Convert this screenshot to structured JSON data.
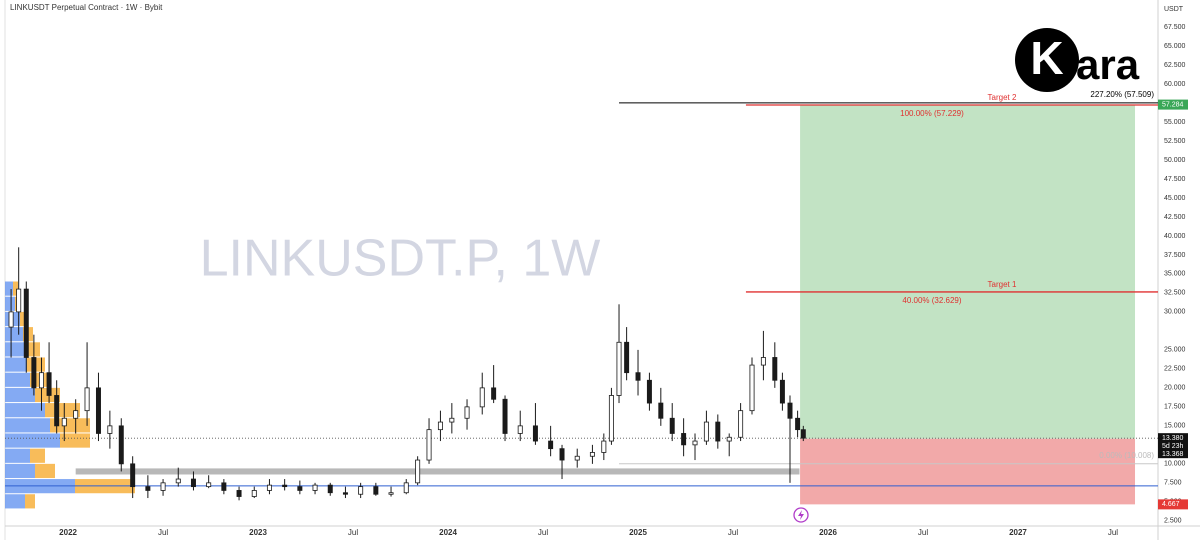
{
  "chart_data": {
    "type": "candlestick",
    "title": "LINKUSDT Perpetual Contract · 1W · Bybit",
    "watermark": "LINKUSDT.P, 1W",
    "y_axis_label": "USDT",
    "logo": {
      "mark": "K",
      "text": "ara"
    },
    "up_color": "#ffffff",
    "down_color": "#1a1a1a",
    "x": [
      2021.7,
      2021.74,
      2021.78,
      2021.82,
      2021.86,
      2021.9,
      2021.94,
      2021.98,
      2022.04,
      2022.1,
      2022.16,
      2022.22,
      2022.28,
      2022.34,
      2022.42,
      2022.5,
      2022.58,
      2022.66,
      2022.74,
      2022.82,
      2022.9,
      2022.98,
      2023.06,
      2023.14,
      2023.22,
      2023.3,
      2023.38,
      2023.46,
      2023.54,
      2023.62,
      2023.7,
      2023.78,
      2023.84,
      2023.9,
      2023.96,
      2024.02,
      2024.1,
      2024.18,
      2024.24,
      2024.3,
      2024.38,
      2024.46,
      2024.54,
      2024.6,
      2024.68,
      2024.76,
      2024.82,
      2024.86,
      2024.9,
      2024.94,
      2025.0,
      2025.06,
      2025.12,
      2025.18,
      2025.24,
      2025.3,
      2025.36,
      2025.42,
      2025.48,
      2025.54,
      2025.6,
      2025.66,
      2025.72,
      2025.76,
      2025.8,
      2025.84,
      2025.87
    ],
    "open": [
      28,
      30,
      33,
      24,
      20,
      22,
      19,
      15,
      16,
      17,
      20,
      14,
      15,
      10,
      7,
      6.5,
      7.5,
      8,
      7,
      7.5,
      6.5,
      5.7,
      6.5,
      7.2,
      7,
      6.5,
      7.2,
      6.2,
      6,
      7,
      6,
      6.2,
      7.5,
      10.5,
      14.5,
      15.5,
      16,
      17.5,
      20,
      18.5,
      14,
      15,
      13,
      12,
      10.5,
      11,
      11.5,
      13,
      19,
      26,
      22,
      21,
      18,
      16,
      14,
      12.5,
      13,
      15.5,
      13,
      13.5,
      17,
      23,
      24,
      21,
      18,
      16,
      14.5
    ],
    "high": [
      33,
      38.5,
      34,
      27,
      24,
      26,
      21,
      18,
      18.5,
      26,
      22,
      17,
      16,
      11,
      8.5,
      8,
      9.5,
      9,
      8.5,
      8,
      7,
      7,
      8,
      8,
      7.8,
      7.5,
      7.5,
      7,
      7.5,
      7.5,
      7,
      8,
      11,
      16,
      17,
      18,
      18.5,
      22,
      23,
      19,
      17,
      18,
      15,
      12.5,
      12,
      12.5,
      14,
      20,
      31,
      28,
      25,
      22,
      20,
      18,
      16,
      14,
      17,
      16.5,
      14,
      18,
      24,
      27.5,
      26,
      22,
      19,
      17,
      15
    ],
    "low": [
      24,
      27,
      22,
      19,
      17,
      18,
      14,
      13,
      14,
      15,
      13,
      12,
      9,
      5.5,
      5.5,
      5.8,
      7,
      6.5,
      6.8,
      6,
      5.2,
      5.5,
      6,
      6.5,
      6,
      6,
      5.8,
      5.5,
      5.5,
      5.8,
      5.7,
      6,
      7.2,
      10,
      13,
      14,
      14.5,
      16.5,
      18,
      13,
      13,
      12.5,
      11,
      8,
      9.5,
      10,
      10.5,
      12.5,
      18,
      21,
      19,
      17,
      15,
      13,
      11,
      10.5,
      12.5,
      12,
      11,
      13,
      16.5,
      21,
      20,
      17,
      7.5,
      13.5,
      13
    ],
    "close": [
      30,
      33,
      24,
      20,
      22,
      19,
      15,
      16,
      17,
      20,
      14,
      15,
      10,
      7,
      6.5,
      7.5,
      8,
      7,
      7.5,
      6.5,
      5.7,
      6.5,
      7.2,
      7,
      6.5,
      7.2,
      6.2,
      6,
      7,
      6,
      6.2,
      7.5,
      10.5,
      14.5,
      15.5,
      16,
      17.5,
      20,
      18.5,
      14,
      15,
      13,
      12,
      10.5,
      11,
      11.5,
      13,
      19,
      26,
      22,
      21,
      18,
      16,
      14,
      12.5,
      13,
      15.5,
      13,
      13.5,
      17,
      23,
      24,
      21,
      18,
      16,
      14.5,
      13.38
    ],
    "xlim": [
      2021.668,
      2027.737
    ],
    "ylim": [
      1.82,
      71.05
    ],
    "xticks": [
      2022,
      {
        "value": 2022.5,
        "label": "Jul"
      },
      2023,
      {
        "value": 2023.5,
        "label": "Jul"
      },
      2024,
      {
        "value": 2024.5,
        "label": "Jul"
      },
      2025,
      {
        "value": 2025.5,
        "label": "Jul"
      },
      2026,
      {
        "value": 2026.5,
        "label": "Jul"
      },
      2027,
      {
        "value": 2027.5,
        "label": "Jul"
      }
    ],
    "yticks": [
      {
        "value": 67.5,
        "label": "67.500"
      },
      {
        "value": 65,
        "label": "65.000"
      },
      {
        "value": 62.5,
        "label": "62.500"
      },
      {
        "value": 60,
        "label": "60.000"
      },
      {
        "value": 55,
        "label": "55.000"
      },
      {
        "value": 52.5,
        "label": "52.500"
      },
      {
        "value": 50,
        "label": "50.000"
      },
      {
        "value": 47.5,
        "label": "47.500"
      },
      {
        "value": 45,
        "label": "45.000"
      },
      {
        "value": 42.5,
        "label": "42.500"
      },
      {
        "value": 40,
        "label": "40.000"
      },
      {
        "value": 37.5,
        "label": "37.500"
      },
      {
        "value": 35,
        "label": "35.000"
      },
      {
        "value": 32.5,
        "label": "32.500"
      },
      {
        "value": 30,
        "label": "30.000"
      },
      {
        "value": 25,
        "label": "25.000"
      },
      {
        "value": 22.5,
        "label": "22.500"
      },
      {
        "value": 20,
        "label": "20.000"
      },
      {
        "value": 17.5,
        "label": "17.500"
      },
      {
        "value": 15,
        "label": "15.000"
      },
      {
        "value": 10,
        "label": "10.000"
      },
      {
        "value": 7.5,
        "label": "7.500"
      },
      {
        "value": 5,
        "label": "5.000"
      },
      {
        "value": 2.5,
        "label": "2.500"
      }
    ],
    "volume_profile": {
      "prices": [
        33,
        31,
        29,
        27,
        25,
        23,
        21,
        19,
        17,
        15,
        13,
        11,
        9,
        7,
        5
      ],
      "buy": [
        8,
        10,
        15,
        18,
        20,
        22,
        25,
        30,
        40,
        45,
        55,
        25,
        30,
        70,
        20
      ],
      "sell": [
        5,
        6,
        8,
        10,
        15,
        18,
        20,
        25,
        35,
        40,
        30,
        15,
        20,
        60,
        10
      ],
      "buy_color": "#5b8def",
      "sell_color": "#f5a623"
    },
    "position": {
      "start": 2025.853,
      "end": 2027.616,
      "entry": 13.3,
      "target": 57.284,
      "stop": 4.667,
      "profit_color": "#c2e3c4",
      "loss_color": "#f2a9a9"
    },
    "levels": [
      {
        "price": 57.509,
        "start": 2024.9,
        "color": "#000000",
        "label": "227.20% (57.509)"
      },
      {
        "price": 57.229,
        "start": 2025.568,
        "color": "#e03030",
        "name": "Target 2",
        "label": "100.00% (57.229)"
      },
      {
        "price": 32.629,
        "start": 2025.568,
        "color": "#e03030",
        "name": "Target 1",
        "label": "40.00% (32.629)"
      },
      {
        "price": 10.008,
        "start": 2024.9,
        "color": "#c8c8c8",
        "label": "0.00% (10.008)"
      }
    ],
    "zone": {
      "low": 8.6,
      "high": 9.4,
      "start": 2022.04,
      "end": 2025.85,
      "color": "#b8b8b8"
    },
    "support_line": {
      "price": 7.1,
      "color": "#2f5fd0"
    },
    "last_price": 13.38,
    "price_badges": [
      {
        "value": 57.284,
        "label": "57.284",
        "color": "#3aa757"
      },
      {
        "value": 13.38,
        "label": "13.380",
        "color": "#111111",
        "sub": "5d 23h",
        "sub2": "13.368"
      },
      {
        "value": 4.667,
        "label": "4.667",
        "color": "#e53935"
      }
    ]
  }
}
